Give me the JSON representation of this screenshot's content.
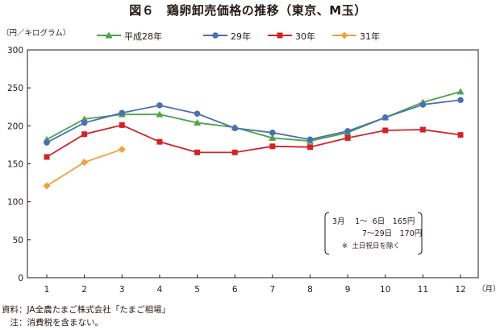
{
  "title": "図６　鶏卵卸売価格の推移（東京、M玉）",
  "chart_data": {
    "type": "line",
    "title": "図６　鶏卵卸売価格の推移（東京、M玉）",
    "ylabel": "（円／キログラム）",
    "xlabel": "（月）",
    "categories": [
      "1",
      "2",
      "3",
      "4",
      "5",
      "6",
      "7",
      "8",
      "9",
      "10",
      "11",
      "12"
    ],
    "ylim": [
      0,
      300
    ],
    "yticks": [
      0,
      50,
      100,
      150,
      200,
      250,
      300
    ],
    "grid": false,
    "legend_position": "top",
    "series": [
      {
        "name": "平成28年",
        "color": "#4ea24a",
        "marker": "triangle",
        "values": [
          182,
          209,
          215,
          215,
          204,
          198,
          184,
          180,
          191,
          211,
          231,
          245
        ]
      },
      {
        "name": "29年",
        "color": "#4a6fb5",
        "marker": "circle",
        "values": [
          178,
          204,
          217,
          227,
          216,
          197,
          191,
          182,
          193,
          211,
          228,
          234
        ]
      },
      {
        "name": "30年",
        "color": "#d2232a",
        "marker": "square",
        "values": [
          159,
          189,
          201,
          179,
          165,
          165,
          173,
          172,
          184,
          194,
          195,
          188
        ]
      },
      {
        "name": "31年",
        "color": "#f0a040",
        "marker": "diamond",
        "values": [
          121,
          152,
          169,
          null,
          null,
          null,
          null,
          null,
          null,
          null,
          null,
          null
        ]
      }
    ],
    "annotation": {
      "line1": "3月　 1～  6日　165円",
      "line2": "7～29日　170円",
      "line3": "※  土日祝日を除く"
    }
  },
  "footer": {
    "source": "資料：JA全農たまご株式会社「たまご相場」",
    "note": "　注：消費税を含まない。"
  }
}
